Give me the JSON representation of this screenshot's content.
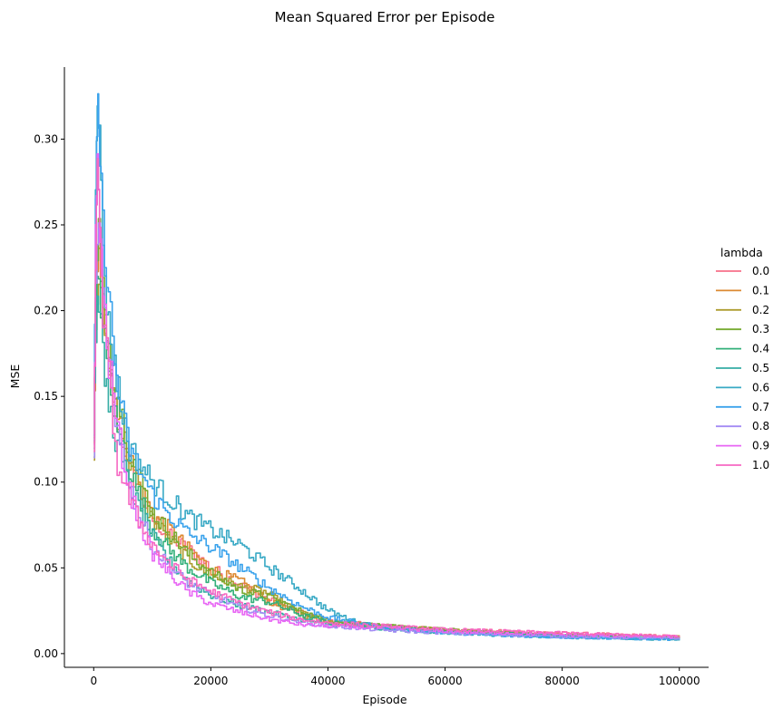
{
  "chart_data": {
    "type": "line",
    "title": "Mean Squared Error per Episode",
    "xlabel": "Episode",
    "ylabel": "MSE",
    "xlim": [
      -5000,
      105000
    ],
    "ylim": [
      -0.008,
      0.342
    ],
    "x_ticks": [
      0,
      20000,
      40000,
      60000,
      80000,
      100000
    ],
    "x_tick_labels": [
      "0",
      "20000",
      "40000",
      "60000",
      "80000",
      "100000"
    ],
    "y_ticks": [
      0.0,
      0.05,
      0.1,
      0.15,
      0.2,
      0.25,
      0.3
    ],
    "y_tick_labels": [
      "0.00",
      "0.05",
      "0.10",
      "0.15",
      "0.20",
      "0.25",
      "0.30"
    ],
    "grid": false,
    "legend": {
      "title": "lambda",
      "placement": "right"
    },
    "series": [
      {
        "name": "0.0",
        "color": "#f77189",
        "points": [
          [
            0,
            0.12
          ],
          [
            300,
            0.21
          ],
          [
            800,
            0.24
          ],
          [
            1500,
            0.2
          ],
          [
            2500,
            0.165
          ],
          [
            4000,
            0.135
          ],
          [
            6000,
            0.11
          ],
          [
            8000,
            0.092
          ],
          [
            10000,
            0.078
          ],
          [
            13000,
            0.068
          ],
          [
            16000,
            0.061
          ],
          [
            20000,
            0.05
          ],
          [
            25000,
            0.04
          ],
          [
            30000,
            0.031
          ],
          [
            35000,
            0.024
          ],
          [
            40000,
            0.019
          ],
          [
            50000,
            0.016
          ],
          [
            60000,
            0.014
          ],
          [
            70000,
            0.013
          ],
          [
            80000,
            0.012
          ],
          [
            90000,
            0.011
          ],
          [
            100000,
            0.01
          ]
        ]
      },
      {
        "name": "0.1",
        "color": "#dc8932",
        "points": [
          [
            0,
            0.12
          ],
          [
            300,
            0.2
          ],
          [
            800,
            0.23
          ],
          [
            1500,
            0.21
          ],
          [
            2500,
            0.17
          ],
          [
            4000,
            0.14
          ],
          [
            6000,
            0.115
          ],
          [
            8000,
            0.095
          ],
          [
            10000,
            0.081
          ],
          [
            13000,
            0.072
          ],
          [
            16000,
            0.061
          ],
          [
            20000,
            0.049
          ],
          [
            25000,
            0.042
          ],
          [
            30000,
            0.03
          ],
          [
            35000,
            0.023
          ],
          [
            40000,
            0.018
          ],
          [
            50000,
            0.016
          ],
          [
            60000,
            0.013
          ],
          [
            70000,
            0.012
          ],
          [
            80000,
            0.011
          ],
          [
            90000,
            0.0105
          ],
          [
            100000,
            0.0095
          ]
        ]
      },
      {
        "name": "0.2",
        "color": "#ae9d31",
        "points": [
          [
            0,
            0.12
          ],
          [
            300,
            0.19
          ],
          [
            800,
            0.22
          ],
          [
            1500,
            0.2
          ],
          [
            2500,
            0.17
          ],
          [
            4000,
            0.14
          ],
          [
            6000,
            0.112
          ],
          [
            8000,
            0.093
          ],
          [
            10000,
            0.078
          ],
          [
            13000,
            0.066
          ],
          [
            16000,
            0.055
          ],
          [
            20000,
            0.045
          ],
          [
            25000,
            0.039
          ],
          [
            29000,
            0.036
          ],
          [
            33000,
            0.028
          ],
          [
            37000,
            0.022
          ],
          [
            40000,
            0.019
          ],
          [
            50000,
            0.016
          ],
          [
            60000,
            0.014
          ],
          [
            70000,
            0.012
          ],
          [
            80000,
            0.011
          ],
          [
            90000,
            0.0105
          ],
          [
            100000,
            0.0098
          ]
        ]
      },
      {
        "name": "0.3",
        "color": "#77ab31",
        "points": [
          [
            0,
            0.12
          ],
          [
            300,
            0.2
          ],
          [
            800,
            0.25
          ],
          [
            1500,
            0.21
          ],
          [
            2500,
            0.18
          ],
          [
            4000,
            0.15
          ],
          [
            6000,
            0.12
          ],
          [
            8000,
            0.1
          ],
          [
            10000,
            0.082
          ],
          [
            13000,
            0.07
          ],
          [
            16000,
            0.058
          ],
          [
            20000,
            0.047
          ],
          [
            25000,
            0.037
          ],
          [
            30000,
            0.033
          ],
          [
            35000,
            0.025
          ],
          [
            40000,
            0.019
          ],
          [
            50000,
            0.016
          ],
          [
            60000,
            0.014
          ],
          [
            70000,
            0.012
          ],
          [
            80000,
            0.011
          ],
          [
            90000,
            0.0102
          ],
          [
            100000,
            0.0096
          ]
        ]
      },
      {
        "name": "0.4",
        "color": "#33b07a",
        "points": [
          [
            0,
            0.12
          ],
          [
            300,
            0.2
          ],
          [
            800,
            0.22
          ],
          [
            1500,
            0.19
          ],
          [
            2500,
            0.16
          ],
          [
            4000,
            0.13
          ],
          [
            6000,
            0.108
          ],
          [
            8000,
            0.089
          ],
          [
            10000,
            0.072
          ],
          [
            13000,
            0.06
          ],
          [
            16000,
            0.05
          ],
          [
            20000,
            0.041
          ],
          [
            25000,
            0.033
          ],
          [
            30000,
            0.03
          ],
          [
            35000,
            0.023
          ],
          [
            40000,
            0.018
          ],
          [
            50000,
            0.015
          ],
          [
            60000,
            0.013
          ],
          [
            70000,
            0.012
          ],
          [
            80000,
            0.0105
          ],
          [
            90000,
            0.0098
          ],
          [
            100000,
            0.0092
          ]
        ]
      },
      {
        "name": "0.5",
        "color": "#36ada4",
        "points": [
          [
            0,
            0.12
          ],
          [
            300,
            0.19
          ],
          [
            800,
            0.21
          ],
          [
            1500,
            0.17
          ],
          [
            2500,
            0.145
          ],
          [
            4000,
            0.12
          ],
          [
            6000,
            0.098
          ],
          [
            8000,
            0.082
          ],
          [
            10000,
            0.068
          ],
          [
            13000,
            0.053
          ],
          [
            16000,
            0.042
          ],
          [
            20000,
            0.034
          ],
          [
            25000,
            0.028
          ],
          [
            30000,
            0.024
          ],
          [
            35000,
            0.02
          ],
          [
            40000,
            0.017
          ],
          [
            50000,
            0.014
          ],
          [
            60000,
            0.012
          ],
          [
            70000,
            0.011
          ],
          [
            80000,
            0.0095
          ],
          [
            90000,
            0.0088
          ],
          [
            100000,
            0.0082
          ]
        ]
      },
      {
        "name": "0.6",
        "color": "#38a9c5",
        "points": [
          [
            0,
            0.12
          ],
          [
            300,
            0.28
          ],
          [
            600,
            0.33
          ],
          [
            900,
            0.3
          ],
          [
            1500,
            0.24
          ],
          [
            2500,
            0.19
          ],
          [
            3500,
            0.17
          ],
          [
            4500,
            0.145
          ],
          [
            6000,
            0.12
          ],
          [
            8000,
            0.11
          ],
          [
            10000,
            0.1
          ],
          [
            13000,
            0.09
          ],
          [
            16000,
            0.08
          ],
          [
            20000,
            0.072
          ],
          [
            25000,
            0.063
          ],
          [
            30000,
            0.05
          ],
          [
            35000,
            0.038
          ],
          [
            40000,
            0.025
          ],
          [
            45000,
            0.018
          ],
          [
            50000,
            0.015
          ],
          [
            60000,
            0.012
          ],
          [
            70000,
            0.0105
          ],
          [
            80000,
            0.0095
          ],
          [
            90000,
            0.0088
          ],
          [
            100000,
            0.0082
          ]
        ]
      },
      {
        "name": "0.7",
        "color": "#3ba3ec",
        "points": [
          [
            0,
            0.12
          ],
          [
            300,
            0.26
          ],
          [
            700,
            0.32
          ],
          [
            1000,
            0.29
          ],
          [
            1500,
            0.25
          ],
          [
            2500,
            0.21
          ],
          [
            3500,
            0.17
          ],
          [
            4500,
            0.145
          ],
          [
            6000,
            0.12
          ],
          [
            8000,
            0.105
          ],
          [
            10000,
            0.092
          ],
          [
            13000,
            0.08
          ],
          [
            16000,
            0.07
          ],
          [
            20000,
            0.062
          ],
          [
            25000,
            0.05
          ],
          [
            30000,
            0.038
          ],
          [
            35000,
            0.028
          ],
          [
            40000,
            0.021
          ],
          [
            50000,
            0.015
          ],
          [
            60000,
            0.012
          ],
          [
            70000,
            0.0105
          ],
          [
            80000,
            0.0095
          ],
          [
            90000,
            0.0088
          ],
          [
            100000,
            0.0082
          ]
        ]
      },
      {
        "name": "0.8",
        "color": "#a48cf4",
        "points": [
          [
            0,
            0.12
          ],
          [
            300,
            0.21
          ],
          [
            800,
            0.25
          ],
          [
            1500,
            0.21
          ],
          [
            2500,
            0.17
          ],
          [
            4000,
            0.13
          ],
          [
            6000,
            0.098
          ],
          [
            8000,
            0.078
          ],
          [
            10000,
            0.062
          ],
          [
            13000,
            0.05
          ],
          [
            16000,
            0.041
          ],
          [
            20000,
            0.034
          ],
          [
            25000,
            0.027
          ],
          [
            30000,
            0.022
          ],
          [
            35000,
            0.019
          ],
          [
            40000,
            0.016
          ],
          [
            50000,
            0.0135
          ],
          [
            60000,
            0.012
          ],
          [
            70000,
            0.011
          ],
          [
            80000,
            0.01
          ],
          [
            90000,
            0.0093
          ],
          [
            100000,
            0.0088
          ]
        ]
      },
      {
        "name": "0.9",
        "color": "#e866f4",
        "points": [
          [
            0,
            0.12
          ],
          [
            300,
            0.24
          ],
          [
            600,
            0.29
          ],
          [
            1000,
            0.25
          ],
          [
            1500,
            0.21
          ],
          [
            2500,
            0.17
          ],
          [
            4000,
            0.13
          ],
          [
            6000,
            0.095
          ],
          [
            8000,
            0.073
          ],
          [
            10000,
            0.058
          ],
          [
            13000,
            0.046
          ],
          [
            16000,
            0.036
          ],
          [
            20000,
            0.029
          ],
          [
            25000,
            0.024
          ],
          [
            30000,
            0.02
          ],
          [
            35000,
            0.017
          ],
          [
            40000,
            0.016
          ],
          [
            50000,
            0.015
          ],
          [
            60000,
            0.013
          ],
          [
            70000,
            0.012
          ],
          [
            80000,
            0.011
          ],
          [
            90000,
            0.0103
          ],
          [
            100000,
            0.0097
          ]
        ]
      },
      {
        "name": "1.0",
        "color": "#f668c2",
        "points": [
          [
            0,
            0.12
          ],
          [
            300,
            0.23
          ],
          [
            600,
            0.28
          ],
          [
            1000,
            0.24
          ],
          [
            1500,
            0.2
          ],
          [
            2500,
            0.16
          ],
          [
            4000,
            0.11
          ],
          [
            6000,
            0.09
          ],
          [
            8000,
            0.075
          ],
          [
            10000,
            0.063
          ],
          [
            13000,
            0.052
          ],
          [
            16000,
            0.043
          ],
          [
            20000,
            0.036
          ],
          [
            25000,
            0.029
          ],
          [
            30000,
            0.024
          ],
          [
            35000,
            0.02
          ],
          [
            40000,
            0.018
          ],
          [
            50000,
            0.016
          ],
          [
            60000,
            0.014
          ],
          [
            70000,
            0.013
          ],
          [
            80000,
            0.012
          ],
          [
            90000,
            0.011
          ],
          [
            100000,
            0.0102
          ]
        ]
      }
    ]
  }
}
